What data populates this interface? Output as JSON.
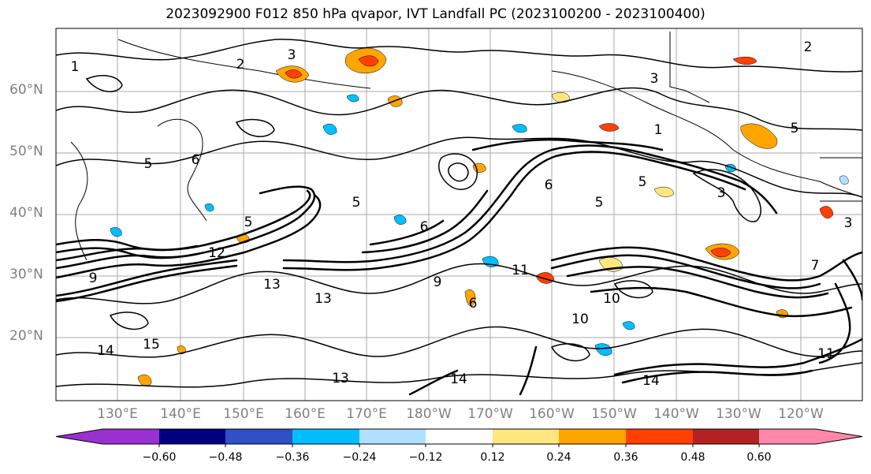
{
  "title": "2023092900 F012 850 hPa qvapor, IVT Landfall PC (2023100200 - 2023100400)",
  "map": {
    "latitude_labels": [
      {
        "label": "60°N",
        "lat": 60
      },
      {
        "label": "50°N",
        "lat": 50
      },
      {
        "label": "40°N",
        "lat": 40
      },
      {
        "label": "30°N",
        "lat": 30
      },
      {
        "label": "20°N",
        "lat": 20
      }
    ],
    "longitude_labels": [
      "130°E",
      "140°E",
      "150°E",
      "160°E",
      "170°E",
      "180°W",
      "170°W",
      "160°W",
      "150°W",
      "140°W",
      "130°W",
      "120°W"
    ],
    "contour_labels": [
      "1",
      "2",
      "3",
      "5",
      "6",
      "7",
      "9",
      "10",
      "11",
      "12",
      "13",
      "14",
      "15"
    ]
  },
  "colorbar": {
    "ticks": [
      "−0.60",
      "−0.48",
      "−0.36",
      "−0.24",
      "−0.12",
      "0.12",
      "0.24",
      "0.36",
      "0.48",
      "0.60"
    ],
    "colors": [
      "#9b30d0",
      "#00007f",
      "#3050c8",
      "#00bfff",
      "#b0e0ff",
      "#ffffff",
      "#ffe680",
      "#ffa500",
      "#ff4000",
      "#b22222",
      "#ff88aa"
    ]
  }
}
